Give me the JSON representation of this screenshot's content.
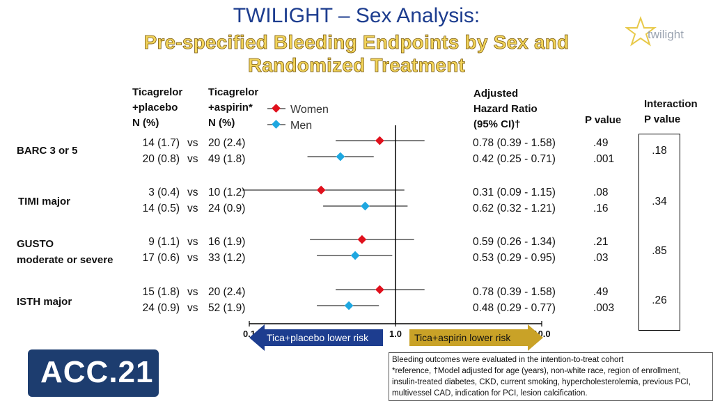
{
  "slide": {
    "title": "TWILIGHT – Sex Analysis:",
    "subtitle": "Pre-specified Bleeding Endpoints by Sex and Randomized Treatment",
    "logo_text": "twilight",
    "conference_logo": "ACC.21"
  },
  "headers": {
    "col1": [
      "Ticagrelor",
      "+placebo",
      "N (%)"
    ],
    "col2": [
      "Ticagrelor",
      "+aspirin*",
      "N (%)"
    ],
    "hr": [
      "Adjusted",
      "Hazard Ratio",
      "(95% CI)†"
    ],
    "p": "P value",
    "interaction": [
      "Interaction",
      "P value"
    ]
  },
  "legend": [
    {
      "name": "Women",
      "color": "#e0101c"
    },
    {
      "name": "Men",
      "color": "#1ea7e0"
    }
  ],
  "rows": [
    {
      "label": [
        "BARC 3 or 5"
      ],
      "women": {
        "placebo": "14 (1.7)",
        "aspirin": "20 (2.4)",
        "hr": "0.78 (0.39 - 1.58)",
        "p": ".49"
      },
      "men": {
        "placebo": "20 (0.8)",
        "aspirin": "49 (1.8)",
        "hr": "0.42 (0.25 - 0.71)",
        "p": ".001"
      },
      "interaction": ".18"
    },
    {
      "label": [
        "TIMI major"
      ],
      "women": {
        "placebo": "3 (0.4)",
        "aspirin": "10 (1.2)",
        "hr": "0.31 (0.09 - 1.15)",
        "p": ".08"
      },
      "men": {
        "placebo": "14 (0.5)",
        "aspirin": "24 (0.9)",
        "hr": "0.62 (0.32 - 1.21)",
        "p": ".16"
      },
      "interaction": ".34"
    },
    {
      "label": [
        "GUSTO",
        "moderate or severe"
      ],
      "women": {
        "placebo": "9 (1.1)",
        "aspirin": "16 (1.9)",
        "hr": "0.59 (0.26 - 1.34)",
        "p": ".21"
      },
      "men": {
        "placebo": "17 (0.6)",
        "aspirin": "33 (1.2)",
        "hr": "0.53 (0.29 - 0.95)",
        "p": ".03"
      },
      "interaction": ".85"
    },
    {
      "label": [
        "ISTH major"
      ],
      "women": {
        "placebo": "15 (1.8)",
        "aspirin": "20 (2.4)",
        "hr": "0.78 (0.39 - 1.58)",
        "p": ".49"
      },
      "men": {
        "placebo": "24 (0.9)",
        "aspirin": "52 (1.9)",
        "hr": "0.48 (0.29 - 0.77)",
        "p": ".003"
      },
      "interaction": ".26"
    }
  ],
  "vs_label": "vs",
  "axis": {
    "ticks": [
      "0.1",
      "1.0",
      "10.0"
    ],
    "left_label": "Tica+placebo lower risk",
    "right_label": "Tica+aspirin lower risk",
    "left_color": "#1d3d8f",
    "right_color": "#c9a227"
  },
  "footnotes": [
    "Bleeding outcomes were evaluated in the intention-to-treat cohort",
    "*reference, †Model adjusted for age (years), non-white race, region of enrollment,",
    "insulin-treated diabetes, CKD, current smoking, hypercholesterolemia, previous PCI,",
    "multivessel CAD, indication for PCI, lesion calcification."
  ],
  "chart_data": {
    "type": "forest",
    "scale": "log",
    "xlim": [
      0.1,
      10.0
    ],
    "reference_line": 1.0,
    "series": [
      {
        "name": "Women",
        "estimates": [
          0.78,
          0.31,
          0.59,
          0.78
        ],
        "lower": [
          0.39,
          0.09,
          0.26,
          0.39
        ],
        "upper": [
          1.58,
          1.15,
          1.34,
          1.58
        ]
      },
      {
        "name": "Men",
        "estimates": [
          0.42,
          0.62,
          0.53,
          0.48
        ],
        "lower": [
          0.25,
          0.32,
          0.29,
          0.29
        ],
        "upper": [
          0.71,
          1.21,
          0.95,
          0.77
        ]
      }
    ],
    "categories": [
      "BARC 3 or 5",
      "TIMI major",
      "GUSTO moderate or severe",
      "ISTH major"
    ]
  }
}
